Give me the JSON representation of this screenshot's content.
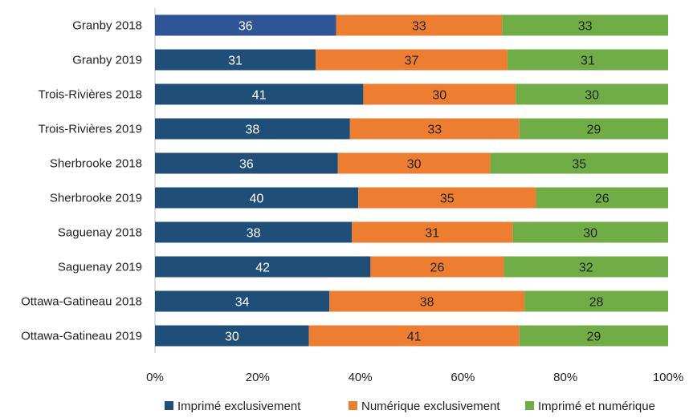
{
  "chart_data": {
    "type": "bar",
    "orientation": "horizontal",
    "stacked": true,
    "normalized": true,
    "categories": [
      "Granby 2018",
      "Granby 2019",
      "Trois-Rivières 2018",
      "Trois-Rivières 2019",
      "Sherbrooke 2018",
      "Sherbrooke 2019",
      "Saguenay 2018",
      "Saguenay 2019",
      "Ottawa-Gatineau 2018",
      "Ottawa-Gatineau 2019"
    ],
    "series": [
      {
        "name": "Imprimé exclusivement",
        "color": "#1f4e79",
        "values": [
          36,
          31,
          41,
          38,
          36,
          40,
          38,
          42,
          34,
          30
        ]
      },
      {
        "name": "Numérique exclusivement",
        "color": "#ed7d31",
        "values": [
          33,
          37,
          30,
          33,
          30,
          35,
          31,
          26,
          38,
          41
        ]
      },
      {
        "name": "Imprimé et numérique",
        "color": "#70ad47",
        "values": [
          33,
          31,
          30,
          29,
          35,
          26,
          30,
          32,
          28,
          29
        ]
      }
    ],
    "highlight": {
      "category_index": 0,
      "series_index": 0,
      "color": "#2f5597"
    },
    "x_ticks": [
      "0%",
      "20%",
      "40%",
      "60%",
      "80%",
      "100%"
    ],
    "xlim": [
      0,
      100
    ],
    "grid": false,
    "legend_position": "bottom",
    "data_label_colors": [
      "#ffffff",
      "#222222",
      "#222222"
    ],
    "xlabel": "",
    "ylabel": ""
  }
}
